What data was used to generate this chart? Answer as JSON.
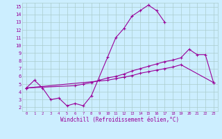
{
  "xlabel": "Windchill (Refroidissement éolien,°C)",
  "bg_color": "#cceeff",
  "grid_color": "#aacccc",
  "line_color": "#990099",
  "xlim": [
    -0.5,
    23.5
  ],
  "ylim": [
    1.5,
    15.5
  ],
  "yticks": [
    2,
    3,
    4,
    5,
    6,
    7,
    8,
    9,
    10,
    11,
    12,
    13,
    14,
    15
  ],
  "xticks": [
    0,
    1,
    2,
    3,
    4,
    5,
    6,
    7,
    8,
    9,
    10,
    11,
    12,
    13,
    14,
    15,
    16,
    17,
    18,
    19,
    20,
    21,
    22,
    23
  ],
  "series_data": {
    "line1_x": [
      0,
      1,
      2,
      3,
      4,
      5,
      6,
      7,
      8,
      10,
      11,
      12,
      13,
      14,
      15,
      16,
      17
    ],
    "line1_y": [
      4.5,
      5.5,
      4.5,
      3.0,
      3.2,
      2.2,
      2.5,
      2.2,
      3.5,
      8.5,
      11.0,
      12.2,
      13.8,
      14.5,
      15.2,
      14.5,
      13.0
    ],
    "line2_x": [
      0,
      6,
      7,
      8,
      9,
      10,
      11,
      12,
      13,
      14,
      15,
      16,
      17,
      18,
      19,
      20,
      21,
      22,
      23
    ],
    "line2_y": [
      4.5,
      4.8,
      5.0,
      5.2,
      5.5,
      5.8,
      6.0,
      6.3,
      6.7,
      7.0,
      7.3,
      7.6,
      7.9,
      8.1,
      8.4,
      9.5,
      8.8,
      8.8,
      5.2
    ],
    "line3_x": [
      0,
      10,
      11,
      12,
      13,
      14,
      15,
      16,
      17,
      18,
      19,
      23
    ],
    "line3_y": [
      4.5,
      5.5,
      5.7,
      5.9,
      6.1,
      6.4,
      6.6,
      6.8,
      7.0,
      7.2,
      7.5,
      5.2
    ]
  }
}
